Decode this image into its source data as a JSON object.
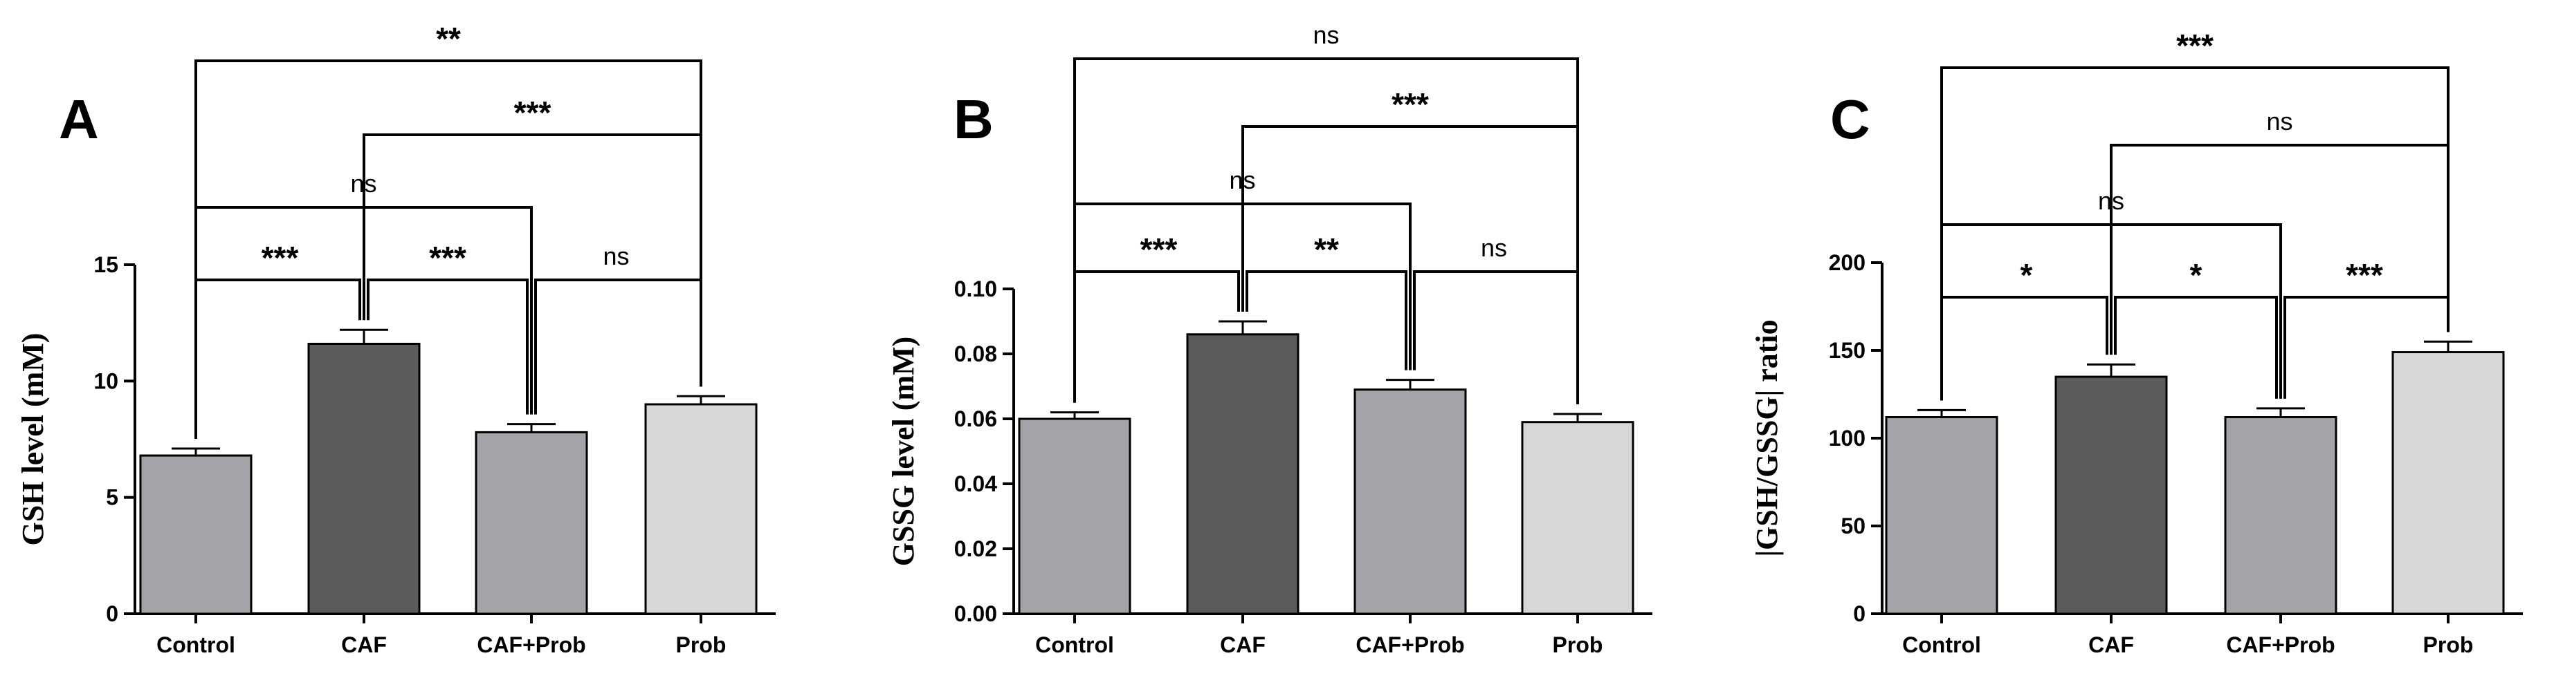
{
  "chart_data": [
    {
      "type": "bar",
      "panel_label": "A",
      "categories": [
        "Control",
        "CAF",
        "CAF+Prob",
        "Prob"
      ],
      "values": [
        6.8,
        11.6,
        7.8,
        9.0
      ],
      "errors": [
        0.3,
        0.6,
        0.35,
        0.35
      ],
      "bar_colors": [
        "#a4a3a8",
        "#5c5c5c",
        "#a4a3a8",
        "#d7d7d7"
      ],
      "ylabel": "GSH level (mM)",
      "ylim": [
        0,
        15
      ],
      "yticks": [
        0,
        5,
        10,
        15
      ],
      "comparisons": [
        {
          "from": 0,
          "to": 1,
          "label": "***"
        },
        {
          "from": 1,
          "to": 2,
          "label": "***"
        },
        {
          "from": 2,
          "to": 3,
          "label": "ns"
        },
        {
          "from": 0,
          "to": 2,
          "label": "ns"
        },
        {
          "from": 1,
          "to": 3,
          "label": "***"
        },
        {
          "from": 0,
          "to": 3,
          "label": "**"
        }
      ]
    },
    {
      "type": "bar",
      "panel_label": "B",
      "categories": [
        "Control",
        "CAF",
        "CAF+Prob",
        "Prob"
      ],
      "values": [
        0.06,
        0.086,
        0.069,
        0.059
      ],
      "errors": [
        0.002,
        0.004,
        0.003,
        0.0025
      ],
      "bar_colors": [
        "#a4a3a8",
        "#5c5c5c",
        "#a4a3a8",
        "#d7d7d7"
      ],
      "ylabel": "GSSG level (mM)",
      "ylim": [
        0,
        0.1
      ],
      "yticks": [
        "0.00",
        "0.02",
        "0.04",
        "0.06",
        "0.08",
        "0.10"
      ],
      "comparisons": [
        {
          "from": 0,
          "to": 1,
          "label": "***"
        },
        {
          "from": 1,
          "to": 2,
          "label": "**"
        },
        {
          "from": 2,
          "to": 3,
          "label": "ns"
        },
        {
          "from": 0,
          "to": 2,
          "label": "ns"
        },
        {
          "from": 1,
          "to": 3,
          "label": "***"
        },
        {
          "from": 0,
          "to": 3,
          "label": "ns"
        }
      ]
    },
    {
      "type": "bar",
      "panel_label": "C",
      "categories": [
        "Control",
        "CAF",
        "CAF+Prob",
        "Prob"
      ],
      "values": [
        112,
        135,
        112,
        149
      ],
      "errors": [
        4,
        7,
        5,
        6
      ],
      "bar_colors": [
        "#a4a3a8",
        "#5c5c5c",
        "#a4a3a8",
        "#d7d7d7"
      ],
      "ylabel": "|GSH/GSSG| ratio",
      "ylim": [
        0,
        200
      ],
      "yticks": [
        0,
        50,
        100,
        150,
        200
      ],
      "comparisons": [
        {
          "from": 0,
          "to": 1,
          "label": "*"
        },
        {
          "from": 1,
          "to": 2,
          "label": "*"
        },
        {
          "from": 2,
          "to": 3,
          "label": "***"
        },
        {
          "from": 0,
          "to": 2,
          "label": "ns"
        },
        {
          "from": 1,
          "to": 3,
          "label": "ns"
        },
        {
          "from": 0,
          "to": 3,
          "label": "***"
        }
      ]
    }
  ]
}
